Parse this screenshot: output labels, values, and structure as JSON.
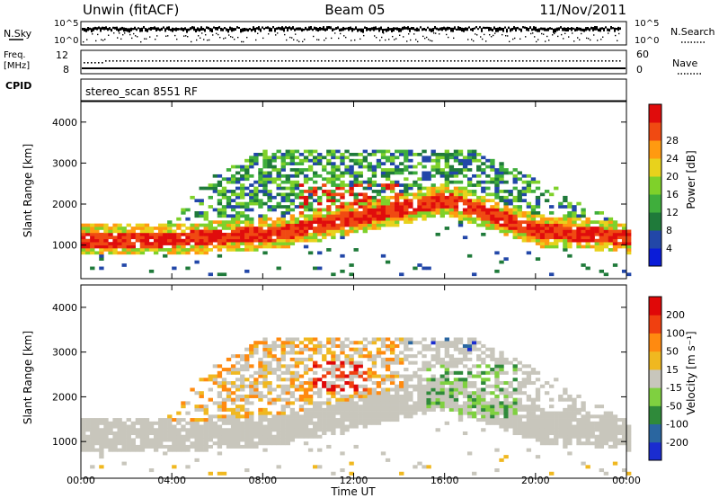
{
  "header": {
    "station": "Unwin (fitACF)",
    "beam": "Beam 05",
    "date": "11/Nov/2011"
  },
  "strips": {
    "noise": {
      "left_label": "N.Sky",
      "right_label": "N.Search",
      "left_ticks": [
        "10^5",
        "10^0"
      ],
      "right_ticks": [
        "10^5",
        "10^0"
      ]
    },
    "freq": {
      "left_label_1": "Freq.",
      "left_label_2": "[MHz]",
      "right_label": "Nave",
      "left_ticks": [
        "12",
        "8"
      ],
      "right_ticks": [
        "60",
        "0"
      ]
    },
    "cpid": {
      "label": "CPID",
      "text": "stereo_scan 8551 RF"
    }
  },
  "chart_data": [
    {
      "type": "heatmap",
      "parameter": "Power",
      "ylabel": "Slant Range [km]",
      "yticks": [
        1000,
        2000,
        3000,
        4000
      ],
      "ylim": [
        180,
        4500
      ],
      "xlim_hours": [
        0,
        24
      ],
      "colorbar": {
        "label": "Power [dB]",
        "ticks": [
          "4",
          "8",
          "12",
          "16",
          "20",
          "24",
          "28"
        ],
        "colors": [
          "#0a1cd8",
          "#2247a8",
          "#1f7a3a",
          "#3fae3c",
          "#7fd12a",
          "#e8d21c",
          "#ff9a10",
          "#f04a12",
          "#e00c0c"
        ]
      }
    },
    {
      "type": "heatmap",
      "parameter": "Velocity",
      "ylabel": "Slant Range [km]",
      "yticks": [
        1000,
        2000,
        3000,
        4000
      ],
      "ylim": [
        180,
        4500
      ],
      "xlim_hours": [
        0,
        24
      ],
      "xticks": [
        "00:00",
        "04:00",
        "08:00",
        "12:00",
        "16:00",
        "20:00",
        "00:00"
      ],
      "xlabel": "Time UT",
      "colorbar": {
        "label": "Velocity [m s⁻¹]",
        "ticks": [
          "200",
          "100",
          "50",
          "15",
          "-15",
          "-50",
          "-100",
          "-200"
        ],
        "colors": [
          "#1a2cd0",
          "#2a66a0",
          "#2f8a3a",
          "#7fd040",
          "#c8c6bc",
          "#f0b820",
          "#ff8a10",
          "#f04010",
          "#e00808"
        ]
      }
    }
  ]
}
